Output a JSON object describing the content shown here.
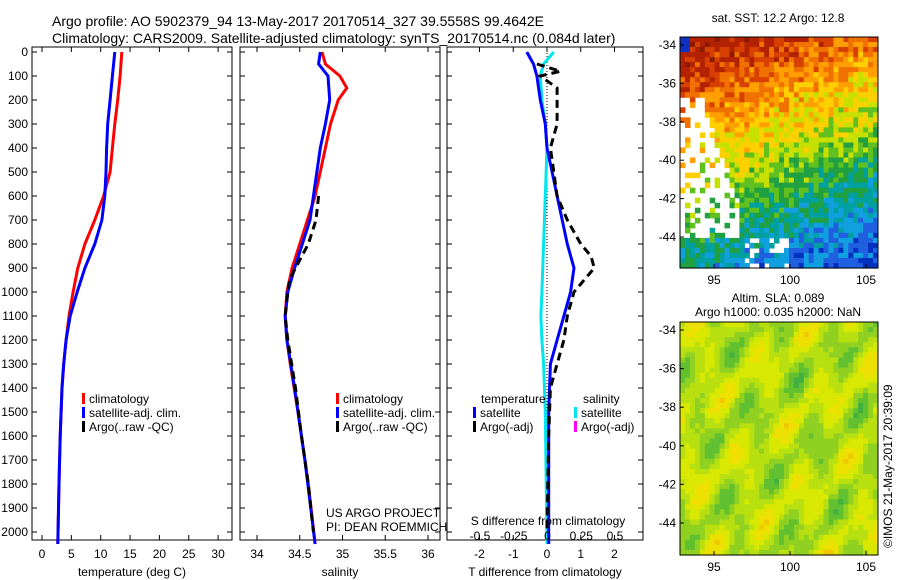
{
  "title_line1": "Argo profile: AO 5902379_94 13-May-2017 20170514_327 39.5558S 99.4642E",
  "title_line2": "Climatology: CARS2009. Satellite-adjusted climatology: synTS_20170514.nc (0.084d later)",
  "colors": {
    "climatology": "#ff0000",
    "satellite": "#0000ff",
    "argo": "#000000",
    "sal_satellite": "#00e5ee",
    "sal_argo": "#ff00ff"
  },
  "chart_data": [
    {
      "type": "line",
      "xlabel": "temperature (deg C)",
      "ylabel": "",
      "xlim": [
        -1,
        31
      ],
      "ylim": [
        2060,
        0
      ],
      "xticks": [
        "0",
        "5",
        "10",
        "15",
        "20",
        "25",
        "30"
      ],
      "yticks": [
        "0",
        "100",
        "200",
        "300",
        "400",
        "500",
        "600",
        "700",
        "800",
        "900",
        "1000",
        "1100",
        "1200",
        "1300",
        "1400",
        "1500",
        "1600",
        "1700",
        "1800",
        "1900",
        "2000"
      ],
      "legend": [
        "climatology",
        "satellite-adj. clim.",
        "Argo(..raw -QC)"
      ],
      "series": [
        {
          "name": "climatology",
          "depth": [
            0,
            100,
            200,
            300,
            400,
            500,
            600,
            700,
            800,
            900,
            1000,
            1100,
            1200,
            1300,
            1400,
            1600,
            1800,
            2050
          ],
          "values": [
            13.6,
            13.3,
            12.9,
            12.4,
            12.0,
            11.6,
            10.5,
            9.0,
            7.3,
            6.1,
            5.3,
            4.6,
            4.1,
            3.7,
            3.4,
            3.1,
            2.9,
            2.7
          ]
        },
        {
          "name": "satellite-adj. clim.",
          "depth": [
            0,
            100,
            200,
            300,
            400,
            500,
            600,
            700,
            800,
            900,
            1000,
            1100,
            1200,
            1300,
            1400,
            1600,
            1800,
            2050
          ],
          "values": [
            12.4,
            12.0,
            11.6,
            11.2,
            11.0,
            10.9,
            10.7,
            10.2,
            9.0,
            7.3,
            6.0,
            4.8,
            4.1,
            3.7,
            3.4,
            3.1,
            2.9,
            2.7
          ]
        }
      ]
    },
    {
      "type": "line",
      "xlabel": "salinity",
      "xlim": [
        33.8,
        36.1
      ],
      "ylim": [
        2060,
        0
      ],
      "xticks": [
        "34",
        "34.5",
        "35",
        "35.5",
        "36"
      ],
      "legend": [
        "climatology",
        "satellite-adj. clim.",
        "Argo(..raw -QC)"
      ],
      "annotation": [
        "US ARGO PROJECT",
        "PI: DEAN ROEMMICH"
      ],
      "series": [
        {
          "name": "climatology",
          "depth": [
            0,
            50,
            100,
            150,
            200,
            300,
            400,
            600,
            800,
            900,
            1000,
            1100,
            1200,
            1300,
            1500,
            1800,
            2050
          ],
          "values": [
            34.76,
            34.8,
            34.97,
            35.05,
            34.95,
            34.86,
            34.8,
            34.68,
            34.5,
            34.41,
            34.35,
            34.33,
            34.35,
            34.39,
            34.48,
            34.6,
            34.68
          ]
        },
        {
          "name": "satellite-adj. clim.",
          "depth": [
            0,
            50,
            100,
            200,
            300,
            400,
            700,
            900,
            1000,
            1100,
            1200,
            1400,
            1700,
            2050
          ],
          "values": [
            34.74,
            34.72,
            34.83,
            34.85,
            34.8,
            34.74,
            34.62,
            34.44,
            34.36,
            34.33,
            34.35,
            34.44,
            34.56,
            34.68
          ]
        },
        {
          "name": "Argo",
          "depth": [
            600,
            700,
            800,
            900,
            950,
            1000,
            1100,
            1200,
            1400,
            1600,
            1800,
            2000
          ],
          "values": [
            34.72,
            34.69,
            34.6,
            34.45,
            34.38,
            34.36,
            34.33,
            34.36,
            34.45,
            34.52,
            34.6,
            34.66
          ]
        }
      ]
    },
    {
      "type": "line",
      "xlabel": "T difference from climatology",
      "xlabel2": "S difference from climatology",
      "xlim": [
        -2.9,
        2.9
      ],
      "ylim": [
        2060,
        0
      ],
      "xticks": [
        "-2",
        "-1",
        "0",
        "1",
        "2"
      ],
      "xticks2": [
        "-0.5",
        "-0.25",
        "0",
        "0.25",
        "0.5"
      ],
      "legend_titles": [
        "temperature",
        "salinity"
      ],
      "legend": [
        "satellite",
        "Argo(-adj)",
        "satellite",
        "Argo(-adj)"
      ],
      "series": [
        {
          "name": "temperature satellite",
          "depth": [
            0,
            50,
            100,
            200,
            300,
            400,
            500,
            600,
            700,
            800,
            900,
            1000,
            1100,
            1200,
            1300,
            1500,
            1800,
            2050
          ],
          "values": [
            -0.6,
            -0.4,
            -0.3,
            -0.2,
            -0.05,
            0.0,
            0.15,
            0.3,
            0.45,
            0.6,
            0.8,
            0.7,
            0.5,
            0.3,
            0.1,
            0.05,
            0.05,
            0.05
          ]
        },
        {
          "name": "temperature Argo(-adj)",
          "depth": [
            50,
            80,
            100,
            150,
            200,
            300,
            400,
            500,
            600,
            700,
            800,
            850,
            900,
            1000,
            1100,
            1200,
            1300,
            1400,
            1600,
            2000
          ],
          "values": [
            -0.3,
            0.4,
            -0.2,
            0.3,
            0.3,
            0.3,
            0.1,
            0.2,
            0.3,
            0.6,
            1.0,
            1.3,
            1.4,
            0.8,
            0.6,
            0.5,
            0.3,
            0.1,
            0.05,
            0.0
          ]
        },
        {
          "name": "salinity satellite (T-axis units, x4)",
          "depth": [
            0,
            50,
            100,
            200,
            300,
            400,
            600,
            800,
            1000,
            1100,
            1200,
            1300,
            1500,
            2050
          ],
          "values": [
            0.2,
            -0.1,
            -0.2,
            -0.15,
            -0.05,
            0.0,
            -0.05,
            -0.1,
            -0.15,
            -0.18,
            -0.15,
            -0.1,
            -0.05,
            0.0
          ]
        }
      ]
    }
  ],
  "map_sst": {
    "title": "sat. SST: 12.2 Argo: 12.8",
    "xticks": [
      "95",
      "100",
      "105"
    ],
    "yticks": [
      "-34",
      "-36",
      "-38",
      "-40",
      "-42",
      "-44"
    ]
  },
  "map_sla": {
    "title1": "Altim. SLA: 0.089",
    "title2": "Argo h1000: 0.035 h2000: NaN",
    "xticks": [
      "95",
      "100",
      "105"
    ],
    "yticks": [
      "-34",
      "-36",
      "-38",
      "-40",
      "-42",
      "-44"
    ]
  },
  "credit": "©IMOS 21-May-2017 20:39:09"
}
